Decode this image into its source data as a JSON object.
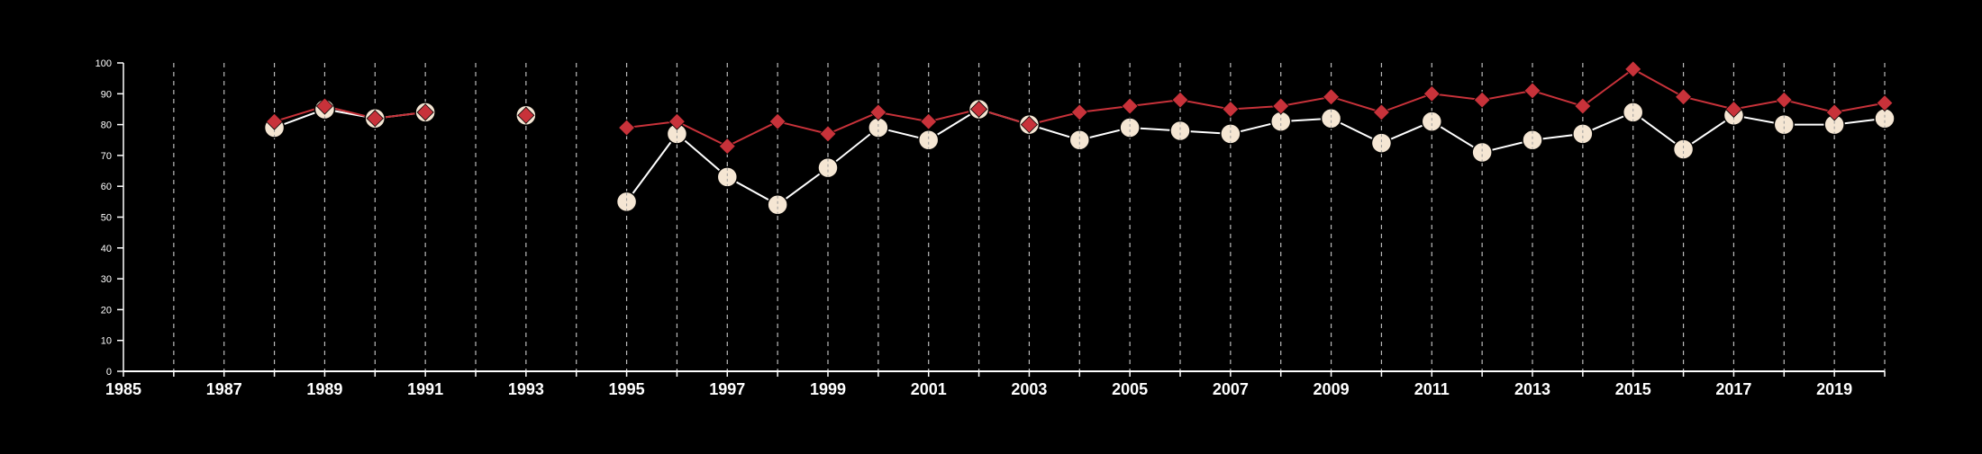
{
  "chart_data": {
    "type": "line",
    "title": "",
    "xlabel": "",
    "ylabel": "",
    "xlim": [
      1985,
      2020
    ],
    "ylim": [
      0,
      100
    ],
    "y_ticks": [
      "0",
      "10",
      "20",
      "30",
      "40",
      "50",
      "60",
      "70",
      "80",
      "90",
      "100"
    ],
    "x_tick_labels": [
      "1985",
      "1987",
      "1989",
      "1991",
      "1993",
      "1995",
      "1997",
      "1999",
      "2001",
      "2003",
      "2005",
      "2007",
      "2009",
      "2011",
      "2013",
      "2015",
      "2017",
      "2019"
    ],
    "grid": "vertical dashed at every year",
    "legend": "none",
    "series": [
      {
        "color": "#c8323a",
        "marker": "diamond",
        "points": [
          [
            1988,
            81
          ],
          [
            1989,
            86
          ],
          [
            1990,
            82
          ],
          [
            1991,
            84
          ],
          [
            1993,
            83
          ],
          [
            1995,
            79
          ],
          [
            1996,
            81
          ],
          [
            1997,
            73
          ],
          [
            1998,
            81
          ],
          [
            1999,
            77
          ],
          [
            2000,
            84
          ],
          [
            2001,
            81
          ],
          [
            2002,
            85
          ],
          [
            2003,
            80
          ],
          [
            2004,
            84
          ],
          [
            2005,
            86
          ],
          [
            2006,
            88
          ],
          [
            2007,
            85
          ],
          [
            2008,
            86
          ],
          [
            2009,
            89
          ],
          [
            2010,
            84
          ],
          [
            2011,
            90
          ],
          [
            2012,
            88
          ],
          [
            2013,
            91
          ],
          [
            2014,
            86
          ],
          [
            2015,
            98
          ],
          [
            2016,
            89
          ],
          [
            2017,
            85
          ],
          [
            2018,
            88
          ],
          [
            2019,
            84
          ],
          [
            2020,
            87
          ]
        ]
      },
      {
        "color": "#f5e6d3",
        "marker": "circle",
        "points": [
          [
            1988,
            79
          ],
          [
            1989,
            85
          ],
          [
            1990,
            82
          ],
          [
            1991,
            84
          ],
          [
            1993,
            83
          ],
          [
            1995,
            55
          ],
          [
            1996,
            77
          ],
          [
            1997,
            63
          ],
          [
            1998,
            54
          ],
          [
            1999,
            66
          ],
          [
            2000,
            79
          ],
          [
            2001,
            75
          ],
          [
            2002,
            85
          ],
          [
            2003,
            80
          ],
          [
            2004,
            75
          ],
          [
            2005,
            79
          ],
          [
            2006,
            78
          ],
          [
            2007,
            77
          ],
          [
            2008,
            81
          ],
          [
            2009,
            82
          ],
          [
            2010,
            74
          ],
          [
            2011,
            81
          ],
          [
            2012,
            71
          ],
          [
            2013,
            75
          ],
          [
            2014,
            77
          ],
          [
            2015,
            84
          ],
          [
            2016,
            72
          ],
          [
            2017,
            83
          ],
          [
            2018,
            80
          ],
          [
            2019,
            80
          ],
          [
            2020,
            82
          ]
        ]
      }
    ]
  }
}
